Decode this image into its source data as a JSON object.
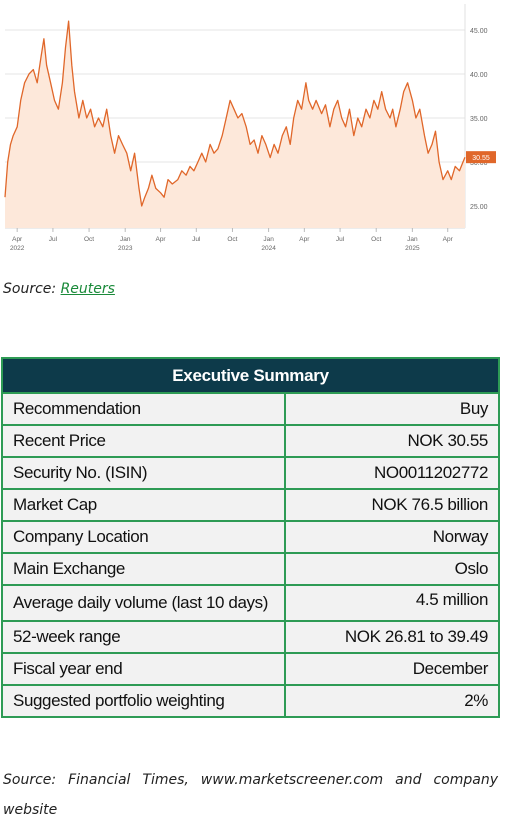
{
  "chart_data": {
    "type": "area",
    "x_start": "2022-03-01",
    "x_end": "2025-05-15",
    "ylim": [
      22.5,
      47.5
    ],
    "y_ticks": [
      "45.00",
      "40.00",
      "35.00",
      "30.00",
      "25.00"
    ],
    "y_tick_values": [
      45,
      40,
      35,
      30,
      25
    ],
    "x_ticks": [
      {
        "label": "Apr",
        "year": "2022",
        "date": "2022-04-01"
      },
      {
        "label": "Jul",
        "year": "",
        "date": "2022-07-01"
      },
      {
        "label": "Oct",
        "year": "",
        "date": "2022-10-01"
      },
      {
        "label": "Jan",
        "year": "2023",
        "date": "2023-01-01"
      },
      {
        "label": "Apr",
        "year": "",
        "date": "2023-04-01"
      },
      {
        "label": "Jul",
        "year": "",
        "date": "2023-07-01"
      },
      {
        "label": "Oct",
        "year": "",
        "date": "2023-10-01"
      },
      {
        "label": "Jan",
        "year": "2024",
        "date": "2024-01-01"
      },
      {
        "label": "Apr",
        "year": "",
        "date": "2024-04-01"
      },
      {
        "label": "Jul",
        "year": "",
        "date": "2024-07-01"
      },
      {
        "label": "Oct",
        "year": "",
        "date": "2024-10-01"
      },
      {
        "label": "Jan",
        "year": "2025",
        "date": "2025-01-01"
      },
      {
        "label": "Apr",
        "year": "",
        "date": "2025-04-01"
      }
    ],
    "last_price_label": "30.55",
    "series": [
      {
        "points": [
          [
            "2022-03-01",
            26
          ],
          [
            "2022-03-08",
            30
          ],
          [
            "2022-03-15",
            32
          ],
          [
            "2022-03-22",
            33
          ],
          [
            "2022-04-01",
            34
          ],
          [
            "2022-04-10",
            37
          ],
          [
            "2022-04-20",
            39
          ],
          [
            "2022-05-01",
            40
          ],
          [
            "2022-05-12",
            40.5
          ],
          [
            "2022-05-22",
            39
          ],
          [
            "2022-06-01",
            42
          ],
          [
            "2022-06-08",
            44
          ],
          [
            "2022-06-15",
            41
          ],
          [
            "2022-06-25",
            39
          ],
          [
            "2022-07-05",
            37
          ],
          [
            "2022-07-15",
            36
          ],
          [
            "2022-07-25",
            39
          ],
          [
            "2022-08-02",
            43
          ],
          [
            "2022-08-10",
            46
          ],
          [
            "2022-08-18",
            41
          ],
          [
            "2022-08-25",
            38
          ],
          [
            "2022-09-05",
            35
          ],
          [
            "2022-09-15",
            37
          ],
          [
            "2022-09-25",
            35
          ],
          [
            "2022-10-05",
            36
          ],
          [
            "2022-10-15",
            34
          ],
          [
            "2022-10-25",
            35
          ],
          [
            "2022-11-05",
            34
          ],
          [
            "2022-11-15",
            36
          ],
          [
            "2022-11-25",
            33
          ],
          [
            "2022-12-05",
            31
          ],
          [
            "2022-12-15",
            33
          ],
          [
            "2022-12-25",
            32
          ],
          [
            "2023-01-05",
            31
          ],
          [
            "2023-01-15",
            29
          ],
          [
            "2023-01-25",
            31
          ],
          [
            "2023-02-05",
            27
          ],
          [
            "2023-02-12",
            25
          ],
          [
            "2023-02-20",
            26
          ],
          [
            "2023-03-01",
            27
          ],
          [
            "2023-03-10",
            28.5
          ],
          [
            "2023-03-20",
            27
          ],
          [
            "2023-04-01",
            26.5
          ],
          [
            "2023-04-10",
            26
          ],
          [
            "2023-04-20",
            28
          ],
          [
            "2023-05-01",
            27.5
          ],
          [
            "2023-05-15",
            28
          ],
          [
            "2023-05-25",
            29
          ],
          [
            "2023-06-05",
            28.5
          ],
          [
            "2023-06-15",
            29.5
          ],
          [
            "2023-06-25",
            29
          ],
          [
            "2023-07-05",
            30
          ],
          [
            "2023-07-15",
            31
          ],
          [
            "2023-07-25",
            30
          ],
          [
            "2023-08-05",
            32
          ],
          [
            "2023-08-15",
            31
          ],
          [
            "2023-08-25",
            31.5
          ],
          [
            "2023-09-05",
            33
          ],
          [
            "2023-09-15",
            35
          ],
          [
            "2023-09-25",
            37
          ],
          [
            "2023-10-05",
            36
          ],
          [
            "2023-10-15",
            35
          ],
          [
            "2023-10-25",
            35.5
          ],
          [
            "2023-11-05",
            34
          ],
          [
            "2023-11-15",
            32
          ],
          [
            "2023-11-25",
            32.5
          ],
          [
            "2023-12-05",
            31
          ],
          [
            "2023-12-15",
            33
          ],
          [
            "2023-12-25",
            32
          ],
          [
            "2024-01-05",
            30.5
          ],
          [
            "2024-01-15",
            32
          ],
          [
            "2024-01-25",
            31
          ],
          [
            "2024-02-05",
            33
          ],
          [
            "2024-02-15",
            34
          ],
          [
            "2024-02-25",
            32
          ],
          [
            "2024-03-05",
            35
          ],
          [
            "2024-03-15",
            37
          ],
          [
            "2024-03-25",
            36
          ],
          [
            "2024-04-05",
            39
          ],
          [
            "2024-04-12",
            37
          ],
          [
            "2024-04-22",
            36
          ],
          [
            "2024-05-01",
            37
          ],
          [
            "2024-05-15",
            35.5
          ],
          [
            "2024-05-25",
            36.5
          ],
          [
            "2024-06-05",
            34
          ],
          [
            "2024-06-15",
            36
          ],
          [
            "2024-06-25",
            37
          ],
          [
            "2024-07-05",
            35
          ],
          [
            "2024-07-15",
            34
          ],
          [
            "2024-07-25",
            36
          ],
          [
            "2024-08-05",
            33
          ],
          [
            "2024-08-15",
            35
          ],
          [
            "2024-08-25",
            34
          ],
          [
            "2024-09-05",
            36
          ],
          [
            "2024-09-15",
            35
          ],
          [
            "2024-09-25",
            37
          ],
          [
            "2024-10-05",
            36
          ],
          [
            "2024-10-15",
            38
          ],
          [
            "2024-10-25",
            36
          ],
          [
            "2024-11-05",
            35
          ],
          [
            "2024-11-12",
            36
          ],
          [
            "2024-11-20",
            34
          ],
          [
            "2024-12-01",
            36
          ],
          [
            "2024-12-10",
            38
          ],
          [
            "2024-12-20",
            39
          ],
          [
            "2025-01-01",
            37
          ],
          [
            "2025-01-10",
            35
          ],
          [
            "2025-01-20",
            36
          ],
          [
            "2025-02-01",
            33
          ],
          [
            "2025-02-10",
            31
          ],
          [
            "2025-02-20",
            32
          ],
          [
            "2025-03-01",
            33.5
          ],
          [
            "2025-03-10",
            30
          ],
          [
            "2025-03-20",
            28
          ],
          [
            "2025-04-01",
            29
          ],
          [
            "2025-04-10",
            28
          ],
          [
            "2025-04-20",
            29.5
          ],
          [
            "2025-05-01",
            29
          ],
          [
            "2025-05-10",
            30
          ],
          [
            "2025-05-15",
            30.55
          ]
        ]
      }
    ],
    "line_color": "#e0672a",
    "fill_color": "#fde8da",
    "marker_color": "#e0672a"
  },
  "source_1": {
    "prefix": "Source: ",
    "link": "Reuters"
  },
  "summary": {
    "title": "Executive Summary",
    "rows": [
      {
        "label": "Recommendation",
        "value": "Buy"
      },
      {
        "label": "Recent Price",
        "value": "NOK 30.55"
      },
      {
        "label": "Security No. (ISIN)",
        "value": "NO0011202772"
      },
      {
        "label": "Market Cap",
        "value": "NOK 76.5 billion"
      },
      {
        "label": "Company Location",
        "value": "Norway"
      },
      {
        "label": "Main Exchange",
        "value": "Oslo"
      },
      {
        "label": "Average daily volume (last 10 days)",
        "value": "4.5 million"
      },
      {
        "label": "52-week range",
        "value": "NOK 26.81 to 39.49"
      },
      {
        "label": "Fiscal year end",
        "value": "December"
      },
      {
        "label": "Suggested portfolio weighting",
        "value": "2%"
      }
    ]
  },
  "source_2": "Source: Financial Times, www.marketscreener.com and company website"
}
